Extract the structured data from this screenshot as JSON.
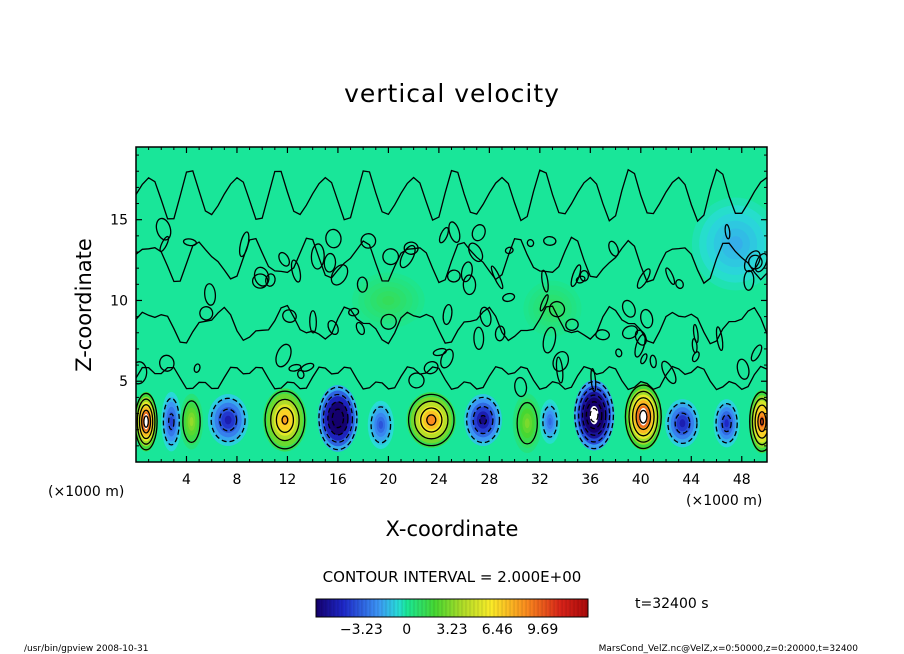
{
  "chart_data": {
    "type": "heatmap",
    "title": "vertical velocity",
    "xlabel": "X-coordinate",
    "ylabel": "Z-coordinate",
    "x_unit_left": "(×1000 m)",
    "x_unit_right": "(×1000 m)",
    "xlim": [
      0,
      50
    ],
    "ylim": [
      0,
      19.5
    ],
    "x_ticks": [
      4,
      8,
      12,
      16,
      20,
      24,
      28,
      32,
      36,
      40,
      44,
      48
    ],
    "x_tick_labels": [
      "4",
      "8",
      "12",
      "16",
      "20",
      "24",
      "28",
      "32",
      "36",
      "40",
      "44",
      "48"
    ],
    "y_ticks": [
      5,
      10,
      15
    ],
    "y_tick_labels": [
      "5",
      "10",
      "15"
    ],
    "contour_interval_label": "CONTOUR INTERVAL = 2.000E+00",
    "time_label": "t=32400 s",
    "colorbar": {
      "range": [
        -6.46,
        12.92
      ],
      "tick_values": [
        -3.23,
        0,
        3.23,
        6.46,
        9.69
      ],
      "tick_labels": [
        "−3.23",
        "0",
        "3.23",
        "6.46",
        "9.69"
      ]
    },
    "cells": [
      {
        "x": 0.8,
        "z": 2.5,
        "w": 11.0,
        "sx": 0.8,
        "sz": 1.6
      },
      {
        "x": 2.8,
        "z": 2.5,
        "w": -4.0,
        "sx": 0.7,
        "sz": 1.6
      },
      {
        "x": 4.4,
        "z": 2.5,
        "w": 3.5,
        "sx": 0.8,
        "sz": 1.5
      },
      {
        "x": 7.3,
        "z": 2.6,
        "w": -5.0,
        "sx": 1.4,
        "sz": 1.4
      },
      {
        "x": 11.8,
        "z": 2.6,
        "w": 8.0,
        "sx": 1.5,
        "sz": 1.7
      },
      {
        "x": 16.0,
        "z": 2.7,
        "w": -9.5,
        "sx": 1.4,
        "sz": 1.8
      },
      {
        "x": 19.4,
        "z": 2.3,
        "w": -3.5,
        "sx": 0.9,
        "sz": 1.3
      },
      {
        "x": 23.4,
        "z": 2.6,
        "w": 8.5,
        "sx": 1.7,
        "sz": 1.5
      },
      {
        "x": 27.5,
        "z": 2.6,
        "w": -6.0,
        "sx": 1.3,
        "sz": 1.4
      },
      {
        "x": 31.0,
        "z": 2.4,
        "w": 3.0,
        "sx": 1.0,
        "sz": 1.6
      },
      {
        "x": 32.8,
        "z": 2.5,
        "w": -3.0,
        "sx": 0.7,
        "sz": 1.2
      },
      {
        "x": 36.3,
        "z": 2.9,
        "w": -11.0,
        "sx": 1.4,
        "sz": 1.9
      },
      {
        "x": 40.2,
        "z": 2.8,
        "w": 11.0,
        "sx": 1.3,
        "sz": 1.8
      },
      {
        "x": 43.3,
        "z": 2.4,
        "w": -5.0,
        "sx": 1.2,
        "sz": 1.3
      },
      {
        "x": 46.8,
        "z": 2.4,
        "w": -4.5,
        "sx": 0.9,
        "sz": 1.3
      },
      {
        "x": 49.6,
        "z": 2.5,
        "w": 10.0,
        "sx": 0.9,
        "sz": 1.7
      },
      {
        "x": 47.5,
        "z": 13.5,
        "w": -1.5,
        "sx": 3.0,
        "sz": 2.5
      },
      {
        "x": 20.0,
        "z": 10.0,
        "w": 1.2,
        "sx": 2.5,
        "sz": 1.5
      },
      {
        "x": 33.0,
        "z": 9.5,
        "w": 1.1,
        "sx": 2.0,
        "sz": 1.5
      }
    ]
  },
  "footer": {
    "left": "/usr/bin/gpview   2008-10-31",
    "right": "MarsCond_VelZ.nc@VelZ,x=0:50000,z=0:20000,t=32400"
  },
  "colors": {
    "background_field": "#19e699",
    "frame": "#000000",
    "contour": "#000000"
  }
}
